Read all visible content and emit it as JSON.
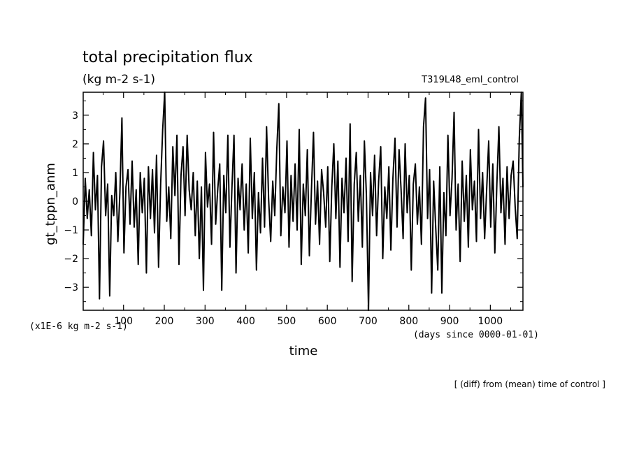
{
  "chart_data": {
    "type": "line",
    "title": "total precipitation flux",
    "subtitle": "(kg m-2 s-1)",
    "run_label": "T319L48_eml_control",
    "ylabel": "gt_tppn_anm",
    "xlabel": "time",
    "y_scale_note": "(x1E-6 kg m-2 s-1)",
    "x_units_note": "(days since 0000-01-01)",
    "footnote": "[ (diff) from (mean) time of control ]",
    "xlim": [
      1,
      1080
    ],
    "ylim": [
      -3.8,
      3.8
    ],
    "x_ticks": [
      100,
      200,
      300,
      400,
      500,
      600,
      700,
      800,
      900,
      1000
    ],
    "x_tick_labels": [
      "100",
      "200",
      "300",
      "400",
      "500",
      "600",
      "700",
      "800",
      "900",
      "1000"
    ],
    "y_ticks": [
      -3,
      -2,
      -1,
      0,
      1,
      2,
      3
    ],
    "y_tick_labels": [
      "−3",
      "−2",
      "−1",
      "0",
      "1",
      "2",
      "3"
    ],
    "series": [
      {
        "values": [
          {
            "x": 1,
            "y": -1.5
          },
          {
            "x": 6,
            "y": 0.8
          },
          {
            "x": 11,
            "y": -0.6
          },
          {
            "x": 16,
            "y": 0.4
          },
          {
            "x": 21,
            "y": -1.2
          },
          {
            "x": 26,
            "y": 1.7
          },
          {
            "x": 31,
            "y": -0.3
          },
          {
            "x": 36,
            "y": 0.9
          },
          {
            "x": 41,
            "y": -3.4
          },
          {
            "x": 46,
            "y": 1.2
          },
          {
            "x": 51,
            "y": 2.1
          },
          {
            "x": 56,
            "y": -0.5
          },
          {
            "x": 61,
            "y": 0.6
          },
          {
            "x": 66,
            "y": -3.3
          },
          {
            "x": 71,
            "y": 0.2
          },
          {
            "x": 76,
            "y": -0.5
          },
          {
            "x": 81,
            "y": 1.0
          },
          {
            "x": 86,
            "y": -1.4
          },
          {
            "x": 91,
            "y": 0.3
          },
          {
            "x": 96,
            "y": 2.9
          },
          {
            "x": 101,
            "y": -1.8
          },
          {
            "x": 106,
            "y": 0.5
          },
          {
            "x": 111,
            "y": 1.1
          },
          {
            "x": 116,
            "y": -0.8
          },
          {
            "x": 121,
            "y": 1.4
          },
          {
            "x": 126,
            "y": -0.9
          },
          {
            "x": 131,
            "y": 0.4
          },
          {
            "x": 136,
            "y": -2.2
          },
          {
            "x": 141,
            "y": 1.0
          },
          {
            "x": 146,
            "y": -0.4
          },
          {
            "x": 151,
            "y": 0.8
          },
          {
            "x": 156,
            "y": -2.5
          },
          {
            "x": 161,
            "y": 1.2
          },
          {
            "x": 166,
            "y": -0.6
          },
          {
            "x": 171,
            "y": 1.1
          },
          {
            "x": 176,
            "y": -1.1
          },
          {
            "x": 181,
            "y": 1.6
          },
          {
            "x": 186,
            "y": -2.3
          },
          {
            "x": 191,
            "y": 0.6
          },
          {
            "x": 196,
            "y": 2.5
          },
          {
            "x": 201,
            "y": 3.8
          },
          {
            "x": 206,
            "y": -0.7
          },
          {
            "x": 211,
            "y": 0.5
          },
          {
            "x": 216,
            "y": -1.3
          },
          {
            "x": 221,
            "y": 1.9
          },
          {
            "x": 226,
            "y": 0.2
          },
          {
            "x": 231,
            "y": 2.3
          },
          {
            "x": 236,
            "y": -2.2
          },
          {
            "x": 241,
            "y": 0.9
          },
          {
            "x": 246,
            "y": 1.9
          },
          {
            "x": 251,
            "y": -0.5
          },
          {
            "x": 256,
            "y": 2.3
          },
          {
            "x": 261,
            "y": 0.4
          },
          {
            "x": 266,
            "y": -0.3
          },
          {
            "x": 271,
            "y": 1.0
          },
          {
            "x": 276,
            "y": -1.2
          },
          {
            "x": 281,
            "y": 0.7
          },
          {
            "x": 286,
            "y": -2.0
          },
          {
            "x": 291,
            "y": 0.5
          },
          {
            "x": 296,
            "y": -3.1
          },
          {
            "x": 301,
            "y": 1.7
          },
          {
            "x": 306,
            "y": -0.2
          },
          {
            "x": 311,
            "y": 0.6
          },
          {
            "x": 316,
            "y": -1.5
          },
          {
            "x": 321,
            "y": 2.4
          },
          {
            "x": 326,
            "y": -0.8
          },
          {
            "x": 331,
            "y": 0.4
          },
          {
            "x": 336,
            "y": 1.3
          },
          {
            "x": 341,
            "y": -3.1
          },
          {
            "x": 346,
            "y": 0.9
          },
          {
            "x": 351,
            "y": -0.4
          },
          {
            "x": 356,
            "y": 2.3
          },
          {
            "x": 361,
            "y": -1.6
          },
          {
            "x": 366,
            "y": 0.5
          },
          {
            "x": 371,
            "y": 2.3
          },
          {
            "x": 376,
            "y": -2.5
          },
          {
            "x": 381,
            "y": 0.8
          },
          {
            "x": 386,
            "y": -0.3
          },
          {
            "x": 391,
            "y": 1.3
          },
          {
            "x": 396,
            "y": -1.0
          },
          {
            "x": 401,
            "y": 0.6
          },
          {
            "x": 406,
            "y": -1.8
          },
          {
            "x": 411,
            "y": 2.2
          },
          {
            "x": 416,
            "y": -0.6
          },
          {
            "x": 421,
            "y": 1.0
          },
          {
            "x": 426,
            "y": -2.4
          },
          {
            "x": 431,
            "y": 0.3
          },
          {
            "x": 436,
            "y": -1.1
          },
          {
            "x": 441,
            "y": 1.5
          },
          {
            "x": 446,
            "y": -0.9
          },
          {
            "x": 451,
            "y": 2.6
          },
          {
            "x": 456,
            "y": 0.1
          },
          {
            "x": 461,
            "y": -1.4
          },
          {
            "x": 466,
            "y": 0.7
          },
          {
            "x": 471,
            "y": -0.5
          },
          {
            "x": 476,
            "y": 1.8
          },
          {
            "x": 481,
            "y": 3.4
          },
          {
            "x": 486,
            "y": -1.2
          },
          {
            "x": 491,
            "y": 0.5
          },
          {
            "x": 496,
            "y": -0.4
          },
          {
            "x": 501,
            "y": 2.1
          },
          {
            "x": 506,
            "y": -1.6
          },
          {
            "x": 511,
            "y": 0.9
          },
          {
            "x": 516,
            "y": -0.7
          },
          {
            "x": 521,
            "y": 1.3
          },
          {
            "x": 526,
            "y": -1.0
          },
          {
            "x": 531,
            "y": 2.5
          },
          {
            "x": 536,
            "y": -2.2
          },
          {
            "x": 541,
            "y": 0.6
          },
          {
            "x": 546,
            "y": -0.5
          },
          {
            "x": 551,
            "y": 1.8
          },
          {
            "x": 556,
            "y": -1.9
          },
          {
            "x": 561,
            "y": 0.4
          },
          {
            "x": 566,
            "y": 2.4
          },
          {
            "x": 571,
            "y": -0.8
          },
          {
            "x": 576,
            "y": 0.7
          },
          {
            "x": 581,
            "y": -1.5
          },
          {
            "x": 586,
            "y": 1.1
          },
          {
            "x": 591,
            "y": 0.3
          },
          {
            "x": 596,
            "y": -0.9
          },
          {
            "x": 601,
            "y": 1.2
          },
          {
            "x": 606,
            "y": -2.1
          },
          {
            "x": 611,
            "y": 0.5
          },
          {
            "x": 616,
            "y": 2.0
          },
          {
            "x": 621,
            "y": -0.6
          },
          {
            "x": 626,
            "y": 1.4
          },
          {
            "x": 631,
            "y": -2.3
          },
          {
            "x": 636,
            "y": 0.8
          },
          {
            "x": 641,
            "y": -0.4
          },
          {
            "x": 646,
            "y": 1.5
          },
          {
            "x": 651,
            "y": -1.4
          },
          {
            "x": 656,
            "y": 2.7
          },
          {
            "x": 661,
            "y": -2.8
          },
          {
            "x": 666,
            "y": 0.6
          },
          {
            "x": 671,
            "y": 1.7
          },
          {
            "x": 676,
            "y": -0.7
          },
          {
            "x": 681,
            "y": 0.9
          },
          {
            "x": 686,
            "y": -1.6
          },
          {
            "x": 691,
            "y": 2.1
          },
          {
            "x": 696,
            "y": 0.2
          },
          {
            "x": 701,
            "y": -3.8
          },
          {
            "x": 706,
            "y": 1.0
          },
          {
            "x": 711,
            "y": -0.5
          },
          {
            "x": 716,
            "y": 1.6
          },
          {
            "x": 721,
            "y": -1.2
          },
          {
            "x": 726,
            "y": 0.7
          },
          {
            "x": 731,
            "y": 1.9
          },
          {
            "x": 736,
            "y": -2.0
          },
          {
            "x": 741,
            "y": 0.5
          },
          {
            "x": 746,
            "y": -0.6
          },
          {
            "x": 751,
            "y": 1.2
          },
          {
            "x": 756,
            "y": -1.7
          },
          {
            "x": 761,
            "y": 0.8
          },
          {
            "x": 766,
            "y": 2.2
          },
          {
            "x": 771,
            "y": -0.9
          },
          {
            "x": 776,
            "y": 1.8
          },
          {
            "x": 781,
            "y": 0.4
          },
          {
            "x": 786,
            "y": -1.3
          },
          {
            "x": 791,
            "y": 2.0
          },
          {
            "x": 796,
            "y": -0.4
          },
          {
            "x": 801,
            "y": 0.9
          },
          {
            "x": 806,
            "y": -2.4
          },
          {
            "x": 811,
            "y": 0.6
          },
          {
            "x": 816,
            "y": 1.3
          },
          {
            "x": 821,
            "y": -0.8
          },
          {
            "x": 826,
            "y": 0.5
          },
          {
            "x": 831,
            "y": -1.5
          },
          {
            "x": 836,
            "y": 2.6
          },
          {
            "x": 841,
            "y": 3.6
          },
          {
            "x": 846,
            "y": -0.6
          },
          {
            "x": 851,
            "y": 1.1
          },
          {
            "x": 856,
            "y": -3.2
          },
          {
            "x": 861,
            "y": 0.7
          },
          {
            "x": 866,
            "y": -0.9
          },
          {
            "x": 871,
            "y": -2.4
          },
          {
            "x": 876,
            "y": 1.2
          },
          {
            "x": 881,
            "y": -3.2
          },
          {
            "x": 886,
            "y": 0.3
          },
          {
            "x": 891,
            "y": -1.2
          },
          {
            "x": 896,
            "y": 2.3
          },
          {
            "x": 901,
            "y": -0.5
          },
          {
            "x": 906,
            "y": 0.8
          },
          {
            "x": 911,
            "y": 3.1
          },
          {
            "x": 916,
            "y": -1.0
          },
          {
            "x": 921,
            "y": 0.6
          },
          {
            "x": 926,
            "y": -2.1
          },
          {
            "x": 931,
            "y": 1.4
          },
          {
            "x": 936,
            "y": -0.7
          },
          {
            "x": 941,
            "y": 0.9
          },
          {
            "x": 946,
            "y": -1.6
          },
          {
            "x": 951,
            "y": 1.8
          },
          {
            "x": 956,
            "y": -0.3
          },
          {
            "x": 961,
            "y": 0.7
          },
          {
            "x": 966,
            "y": -1.4
          },
          {
            "x": 971,
            "y": 2.5
          },
          {
            "x": 976,
            "y": -0.6
          },
          {
            "x": 981,
            "y": 1.0
          },
          {
            "x": 986,
            "y": -1.3
          },
          {
            "x": 991,
            "y": 0.4
          },
          {
            "x": 996,
            "y": 2.1
          },
          {
            "x": 1001,
            "y": -0.9
          },
          {
            "x": 1006,
            "y": 1.3
          },
          {
            "x": 1011,
            "y": -1.8
          },
          {
            "x": 1016,
            "y": 0.6
          },
          {
            "x": 1021,
            "y": 2.6
          },
          {
            "x": 1026,
            "y": -0.4
          },
          {
            "x": 1031,
            "y": 0.8
          },
          {
            "x": 1036,
            "y": -1.5
          },
          {
            "x": 1041,
            "y": 1.2
          },
          {
            "x": 1046,
            "y": -0.6
          },
          {
            "x": 1051,
            "y": 0.9
          },
          {
            "x": 1056,
            "y": 1.4
          },
          {
            "x": 1061,
            "y": -0.2
          },
          {
            "x": 1066,
            "y": -1.3
          },
          {
            "x": 1071,
            "y": 2.2
          },
          {
            "x": 1076,
            "y": 3.8
          },
          {
            "x": 1080,
            "y": 0.5
          }
        ]
      }
    ]
  }
}
